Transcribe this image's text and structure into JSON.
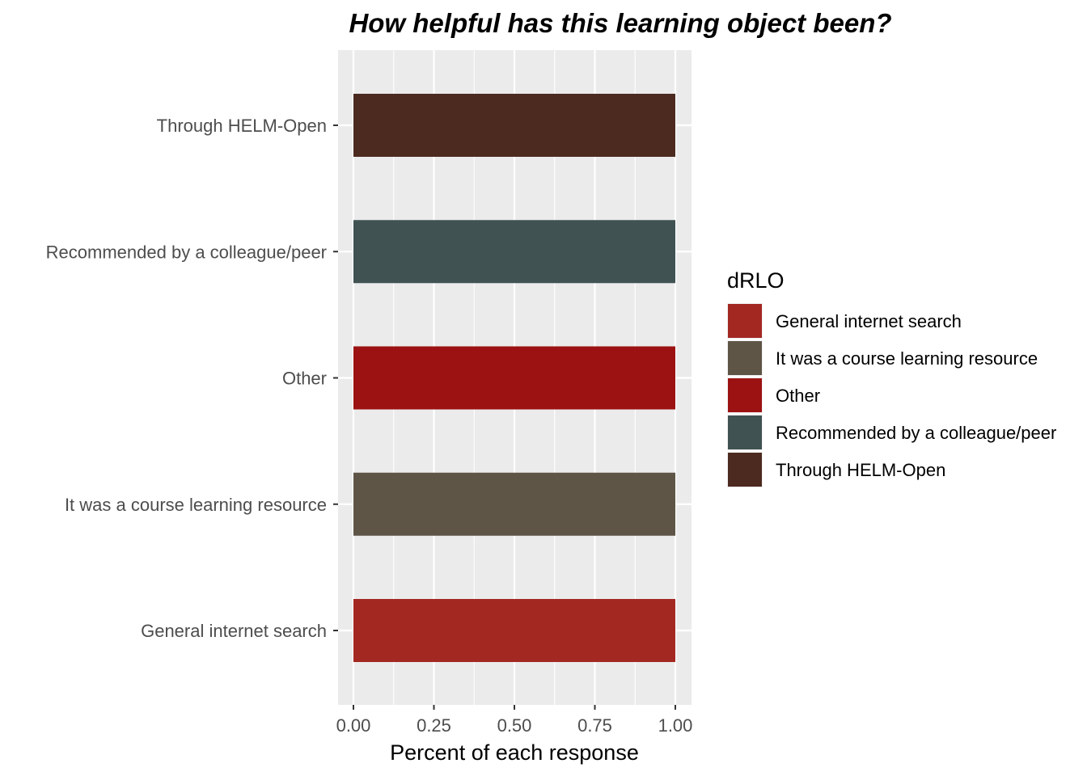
{
  "chart_data": {
    "type": "bar",
    "orientation": "horizontal",
    "title": "How helpful has this learning object been?",
    "xlabel": "Percent of each response",
    "ylabel": "",
    "xlim": [
      0,
      1
    ],
    "x_ticks": [
      "0.00",
      "0.25",
      "0.50",
      "0.75",
      "1.00"
    ],
    "categories": [
      "General internet search",
      "It was a course learning resource",
      "Other",
      "Recommended by a colleague/peer",
      "Through HELM-Open"
    ],
    "values": [
      1.0,
      1.0,
      1.0,
      1.0,
      1.0
    ],
    "colors": [
      "#a32822",
      "#5e5547",
      "#9c1212",
      "#405252",
      "#4c2a20"
    ],
    "legend": {
      "title": "dRLO",
      "position": "right",
      "entries": [
        {
          "label": "General internet search",
          "color": "#a32822"
        },
        {
          "label": "It was a course learning resource",
          "color": "#5e5547"
        },
        {
          "label": "Other",
          "color": "#9c1212"
        },
        {
          "label": "Recommended by a colleague/peer",
          "color": "#405252"
        },
        {
          "label": "Through HELM-Open",
          "color": "#4c2a20"
        }
      ]
    },
    "grid": true,
    "panel_background": "#ebebeb",
    "grid_color": "#ffffff"
  }
}
